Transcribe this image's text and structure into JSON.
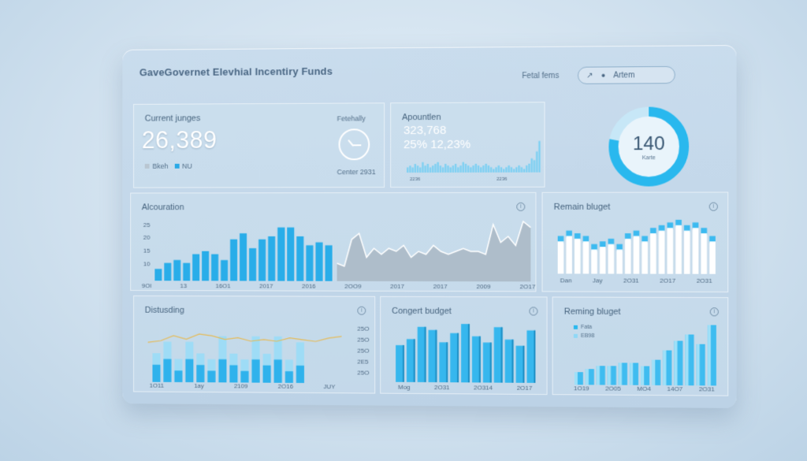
{
  "header": {
    "title": "GaveGovernet Elevhial Incentiry Funds",
    "label": "Fetal fems",
    "button_label": "Artem",
    "button_icon": "circle-dot-icon",
    "cursor_icon": "cursor-icon"
  },
  "current": {
    "title": "Current junges",
    "value": "26,389",
    "legend": [
      "Bkeh",
      "NU"
    ],
    "legend_colors": [
      "#b9c6d1",
      "#29a9e6"
    ],
    "fetch_label": "Fetehally",
    "clock_icon": "clock-icon",
    "footer": "Center 2931"
  },
  "appointment": {
    "title": "Apountlen",
    "value1": "323,768",
    "value2": "25% 12,23%",
    "ticks": [
      "2236",
      "2236"
    ],
    "sparkline": [
      3,
      4,
      3,
      5,
      4,
      3,
      6,
      4,
      5,
      3,
      4,
      5,
      6,
      4,
      3,
      5,
      4,
      3,
      4,
      5,
      3,
      4,
      6,
      5,
      4,
      3,
      4,
      5,
      4,
      3,
      4,
      5,
      4,
      3,
      2,
      3,
      4,
      3,
      2,
      3,
      4,
      3,
      2,
      3,
      4,
      3,
      2,
      4,
      5,
      8,
      7,
      12,
      18
    ]
  },
  "gauge": {
    "value": "140",
    "label": "Karte",
    "fill": 0.78,
    "color": "#29b8ee"
  },
  "allocation": {
    "title": "Alcouration",
    "y_ticks": [
      "25",
      "20",
      "15",
      "10"
    ],
    "x_ticks": [
      "9OI",
      "13",
      "16O1",
      "2017",
      "2016",
      "2OO9",
      "2017",
      "2017",
      "2009",
      "2O17"
    ],
    "bars": [
      4,
      6,
      7,
      6,
      9,
      10,
      9,
      7,
      14,
      16,
      11,
      14,
      15,
      18,
      18,
      15,
      12,
      13,
      12
    ],
    "area": [
      6,
      5,
      14,
      16,
      8,
      11,
      9,
      11,
      10,
      12,
      8,
      10,
      9,
      12,
      10,
      9,
      10,
      11,
      10,
      10,
      9,
      19,
      13,
      15,
      12,
      20,
      18
    ]
  },
  "remain_top": {
    "title": "Remain bluget",
    "x_ticks": [
      "Dan",
      "Jay",
      "2O31",
      "2O17",
      "2O31"
    ],
    "bars": [
      12,
      14,
      13,
      12,
      9,
      10,
      11,
      9,
      13,
      14,
      12,
      15,
      16,
      17,
      18,
      16,
      17,
      15,
      12
    ],
    "caps": [
      14,
      16,
      15,
      14,
      11,
      12,
      13,
      11,
      15,
      16,
      14,
      17,
      18,
      19,
      20,
      18,
      19,
      17,
      14
    ]
  },
  "distusding": {
    "title": "Distusding",
    "y_ticks": [
      "25O",
      "25O",
      "25O",
      "2E5",
      "25O"
    ],
    "x_ticks": [
      "1O11",
      "1ay",
      "2109",
      "2O16",
      "JUY"
    ],
    "bars": [
      3,
      4,
      2,
      4,
      3,
      2,
      4,
      3,
      2,
      4,
      3,
      4,
      2,
      3
    ],
    "tops": [
      5,
      7,
      4,
      7,
      5,
      4,
      8,
      5,
      4,
      8,
      5,
      8,
      4,
      7
    ],
    "line": [
      4,
      5,
      8,
      6,
      9,
      8,
      6,
      7,
      5,
      6,
      5,
      7,
      6,
      5,
      7,
      8
    ]
  },
  "content_budget": {
    "title": "Congert budget",
    "x_ticks": [
      "Mog",
      "2O31",
      "2O314",
      "2O17"
    ],
    "bars": [
      12,
      14,
      18,
      17,
      13,
      16,
      19,
      15,
      13,
      18,
      14,
      12,
      17
    ]
  },
  "remain_bottom": {
    "title": "Reming bluget",
    "legend": [
      "Fata",
      "EB98"
    ],
    "x_ticks": [
      "1O19",
      "2O05",
      "MO4",
      "14O7",
      "2O31"
    ],
    "bars": [
      4,
      5,
      6,
      6,
      7,
      7,
      6,
      8,
      11,
      14,
      16,
      13,
      19
    ]
  }
}
